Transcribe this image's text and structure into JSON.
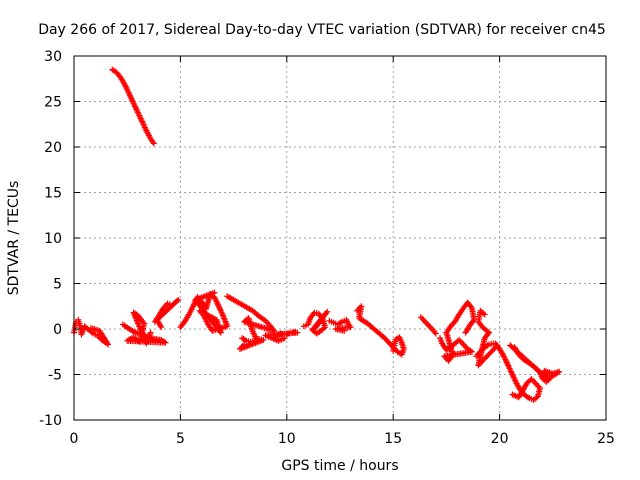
{
  "chart_data": {
    "type": "scatter",
    "title": "Day 266 of 2017, Sidereal Day-to-day VTEC variation (SDTVAR) for receiver cn45",
    "xlabel": "GPS time / hours",
    "ylabel": "SDTVAR / TECUs",
    "xlim": [
      0,
      25
    ],
    "ylim": [
      -10,
      30
    ],
    "xticks": [
      0,
      5,
      10,
      15,
      20,
      25
    ],
    "yticks": [
      -10,
      -5,
      0,
      5,
      10,
      15,
      20,
      25,
      30
    ],
    "xtick_labels": [
      "0",
      "5",
      "10",
      "15",
      "20",
      "25"
    ],
    "ytick_labels": [
      "-10",
      "-5",
      "0",
      "5",
      "10",
      "15",
      "20",
      "25",
      "30"
    ],
    "grid": true,
    "marker": "plus",
    "color": "#ff0000",
    "series": [
      {
        "name": "cn45",
        "segments": [
          [
            [
              1.8,
              28.5
            ],
            [
              2.0,
              28.2
            ],
            [
              2.2,
              27.6
            ],
            [
              2.4,
              26.8
            ],
            [
              2.6,
              25.8
            ],
            [
              2.8,
              24.8
            ],
            [
              3.0,
              23.8
            ],
            [
              3.2,
              22.8
            ],
            [
              3.4,
              21.8
            ],
            [
              3.6,
              20.9
            ],
            [
              3.75,
              20.4
            ]
          ],
          [
            [
              0.0,
              -0.4
            ],
            [
              0.1,
              0.8
            ],
            [
              0.2,
              1.0
            ],
            [
              0.3,
              0.2
            ],
            [
              0.35,
              -0.6
            ],
            [
              0.5,
              0.3
            ],
            [
              0.7,
              -0.1
            ],
            [
              0.9,
              -0.5
            ],
            [
              1.1,
              -0.7
            ],
            [
              1.3,
              -1.2
            ],
            [
              1.5,
              -1.5
            ],
            [
              1.6,
              -1.7
            ],
            [
              1.2,
              -0.2
            ],
            [
              0.8,
              0.1
            ]
          ],
          [
            [
              2.3,
              0.5
            ],
            [
              2.6,
              0.0
            ],
            [
              2.9,
              -0.4
            ],
            [
              3.2,
              -0.6
            ],
            [
              3.5,
              -0.9
            ],
            [
              3.8,
              -1.1
            ],
            [
              4.1,
              -1.2
            ],
            [
              4.3,
              -1.5
            ],
            [
              2.5,
              -1.3
            ],
            [
              2.8,
              -0.9
            ],
            [
              3.1,
              -1.4
            ],
            [
              3.3,
              0.6
            ],
            [
              3.0,
              1.5
            ],
            [
              2.8,
              1.8
            ],
            [
              3.4,
              -1.6
            ],
            [
              3.6,
              -0.4
            ]
          ],
          [
            [
              3.8,
              0.8
            ],
            [
              4.0,
              1.5
            ],
            [
              4.2,
              2.3
            ],
            [
              4.4,
              2.8
            ],
            [
              4.6,
              2.6
            ],
            [
              4.9,
              3.2
            ],
            [
              3.9,
              1.0
            ],
            [
              4.1,
              0.2
            ]
          ],
          [
            [
              5.0,
              0.2
            ],
            [
              5.2,
              0.8
            ],
            [
              5.4,
              1.6
            ],
            [
              5.6,
              2.5
            ],
            [
              5.8,
              3.5
            ],
            [
              6.0,
              3.0
            ],
            [
              6.2,
              2.2
            ],
            [
              6.4,
              3.8
            ],
            [
              6.6,
              3.5
            ],
            [
              6.8,
              2.5
            ],
            [
              7.0,
              1.5
            ],
            [
              7.2,
              0.3
            ],
            [
              6.5,
              -0.2
            ],
            [
              6.3,
              0.5
            ],
            [
              6.1,
              1.5
            ],
            [
              5.9,
              2.0
            ],
            [
              6.7,
              1.0
            ],
            [
              6.9,
              -0.4
            ],
            [
              5.7,
              3.2
            ],
            [
              6.6,
              4.0
            ]
          ],
          [
            [
              7.2,
              3.6
            ],
            [
              7.5,
              3.2
            ],
            [
              7.8,
              2.8
            ],
            [
              8.1,
              2.4
            ],
            [
              8.4,
              2.0
            ],
            [
              8.7,
              1.4
            ],
            [
              9.0,
              0.9
            ],
            [
              9.2,
              0.4
            ],
            [
              9.4,
              -0.2
            ],
            [
              8.0,
              0.8
            ],
            [
              8.2,
              1.2
            ],
            [
              8.4,
              -0.3
            ],
            [
              8.6,
              -1.2
            ]
          ],
          [
            [
              7.9,
              -1.0
            ],
            [
              8.1,
              -1.3
            ],
            [
              8.3,
              -1.4
            ],
            [
              8.5,
              -1.3
            ],
            [
              8.7,
              -1.1
            ],
            [
              8.9,
              -1.2
            ],
            [
              7.8,
              -2.2
            ],
            [
              8.0,
              -1.7
            ]
          ],
          [
            [
              9.3,
              -1.0
            ],
            [
              9.5,
              -0.8
            ],
            [
              9.7,
              -0.5
            ],
            [
              9.9,
              -0.6
            ],
            [
              10.1,
              -0.5
            ],
            [
              10.3,
              -0.3
            ],
            [
              10.5,
              -0.4
            ],
            [
              9.0,
              -0.7
            ],
            [
              9.6,
              -1.3
            ],
            [
              9.9,
              -1.0
            ]
          ],
          [
            [
              10.8,
              0.3
            ],
            [
              11.0,
              0.5
            ],
            [
              11.1,
              1.2
            ],
            [
              11.3,
              1.8
            ],
            [
              11.5,
              1.7
            ],
            [
              11.7,
              1.0
            ],
            [
              11.8,
              0.2
            ],
            [
              11.6,
              -0.2
            ],
            [
              11.4,
              -0.5
            ],
            [
              11.2,
              -0.1
            ],
            [
              11.9,
              1.9
            ],
            [
              11.3,
              0.0
            ]
          ],
          [
            [
              12.0,
              0.9
            ],
            [
              12.2,
              0.7
            ],
            [
              12.4,
              0.5
            ],
            [
              12.6,
              0.8
            ],
            [
              12.8,
              1.0
            ],
            [
              12.9,
              0.5
            ],
            [
              13.0,
              0.2
            ],
            [
              12.3,
              0.0
            ],
            [
              12.7,
              -0.2
            ]
          ],
          [
            [
              13.3,
              2.0
            ],
            [
              13.5,
              2.5
            ],
            [
              13.4,
              1.2
            ],
            [
              13.6,
              0.9
            ],
            [
              13.8,
              0.6
            ],
            [
              14.0,
              0.2
            ],
            [
              14.2,
              -0.2
            ],
            [
              14.4,
              -0.6
            ],
            [
              14.6,
              -1.0
            ],
            [
              14.8,
              -1.5
            ],
            [
              15.0,
              -2.0
            ],
            [
              15.2,
              -2.5
            ],
            [
              15.4,
              -2.8
            ],
            [
              15.5,
              -2.2
            ],
            [
              15.4,
              -1.5
            ],
            [
              15.3,
              -0.9
            ],
            [
              15.1,
              -1.2
            ],
            [
              15.0,
              -2.4
            ]
          ],
          [
            [
              16.3,
              1.3
            ],
            [
              16.5,
              0.8
            ],
            [
              16.7,
              0.3
            ],
            [
              16.9,
              -0.2
            ],
            [
              17.0,
              -0.5
            ]
          ],
          [
            [
              17.2,
              -1.0
            ],
            [
              17.3,
              -1.6
            ],
            [
              17.5,
              -2.3
            ],
            [
              17.7,
              -2.0
            ],
            [
              17.9,
              -1.6
            ],
            [
              18.1,
              -1.2
            ],
            [
              18.3,
              -1.7
            ],
            [
              18.5,
              -2.2
            ],
            [
              18.7,
              -2.5
            ],
            [
              17.4,
              -3.0
            ],
            [
              17.6,
              -3.5
            ],
            [
              17.8,
              -2.8
            ],
            [
              17.5,
              -0.4
            ],
            [
              17.7,
              0.3
            ],
            [
              17.9,
              0.8
            ],
            [
              18.1,
              1.6
            ],
            [
              18.3,
              2.3
            ],
            [
              18.5,
              2.9
            ],
            [
              18.7,
              2.3
            ],
            [
              18.8,
              1.0
            ],
            [
              18.6,
              0.4
            ],
            [
              18.4,
              -0.4
            ]
          ],
          [
            [
              18.9,
              -3.0
            ],
            [
              19.1,
              -2.5
            ],
            [
              19.3,
              -2.0
            ],
            [
              19.5,
              -1.7
            ],
            [
              19.7,
              -1.6
            ],
            [
              19.9,
              -1.8
            ],
            [
              19.2,
              -3.5
            ],
            [
              19.0,
              -4.0
            ],
            [
              19.3,
              -1.0
            ],
            [
              19.5,
              -0.4
            ],
            [
              19.2,
              0.2
            ],
            [
              19.0,
              0.8
            ],
            [
              19.1,
              2.0
            ],
            [
              19.3,
              1.6
            ]
          ],
          [
            [
              19.8,
              -1.6
            ],
            [
              20.0,
              -2.2
            ],
            [
              20.2,
              -3.0
            ],
            [
              20.4,
              -4.0
            ],
            [
              20.6,
              -5.0
            ],
            [
              20.8,
              -6.0
            ],
            [
              21.0,
              -6.8
            ],
            [
              21.2,
              -7.3
            ],
            [
              21.4,
              -7.6
            ],
            [
              21.6,
              -7.8
            ],
            [
              21.8,
              -7.4
            ],
            [
              21.9,
              -6.5
            ],
            [
              21.7,
              -6.0
            ],
            [
              21.5,
              -5.5
            ],
            [
              21.3,
              -5.9
            ],
            [
              20.9,
              -7.5
            ],
            [
              20.6,
              -7.2
            ]
          ],
          [
            [
              20.7,
              -2.0
            ],
            [
              20.9,
              -2.8
            ],
            [
              21.1,
              -3.3
            ],
            [
              21.3,
              -3.6
            ],
            [
              21.5,
              -3.9
            ],
            [
              21.7,
              -4.3
            ],
            [
              21.9,
              -4.8
            ],
            [
              22.0,
              -5.4
            ],
            [
              22.2,
              -5.8
            ],
            [
              22.4,
              -5.3
            ],
            [
              22.6,
              -5.0
            ],
            [
              22.8,
              -4.7
            ],
            [
              22.5,
              -4.9
            ],
            [
              22.1,
              -4.6
            ],
            [
              22.3,
              -5.6
            ],
            [
              20.5,
              -1.8
            ]
          ]
        ]
      }
    ]
  }
}
